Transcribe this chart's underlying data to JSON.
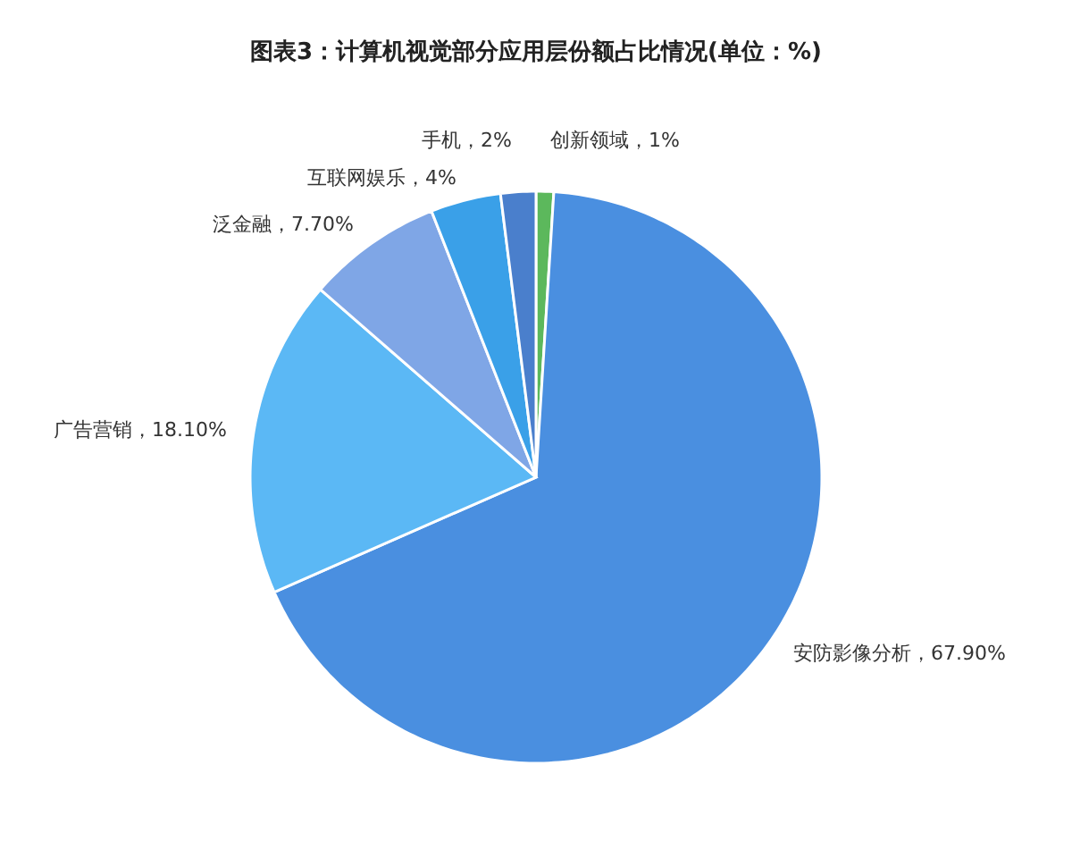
{
  "chart_data": {
    "type": "pie",
    "title": "图表3：计算机视觉部分应用层份额占比情况(单位：%)",
    "categories": [
      "创新领域",
      "安防影像分析",
      "广告营销",
      "泛金融",
      "互联网娱乐",
      "手机"
    ],
    "values": [
      1,
      67.9,
      18.1,
      7.7,
      4,
      2
    ],
    "value_labels": [
      "，1%",
      "，67.90%",
      "，18.10%",
      "，7.70%",
      "，4%",
      "，2%"
    ],
    "colors": [
      "#5cb85c",
      "#4a8fe0",
      "#5bb8f5",
      "#7fa6e6",
      "#3aa0e8",
      "#4a7fcc"
    ],
    "legend": false
  }
}
